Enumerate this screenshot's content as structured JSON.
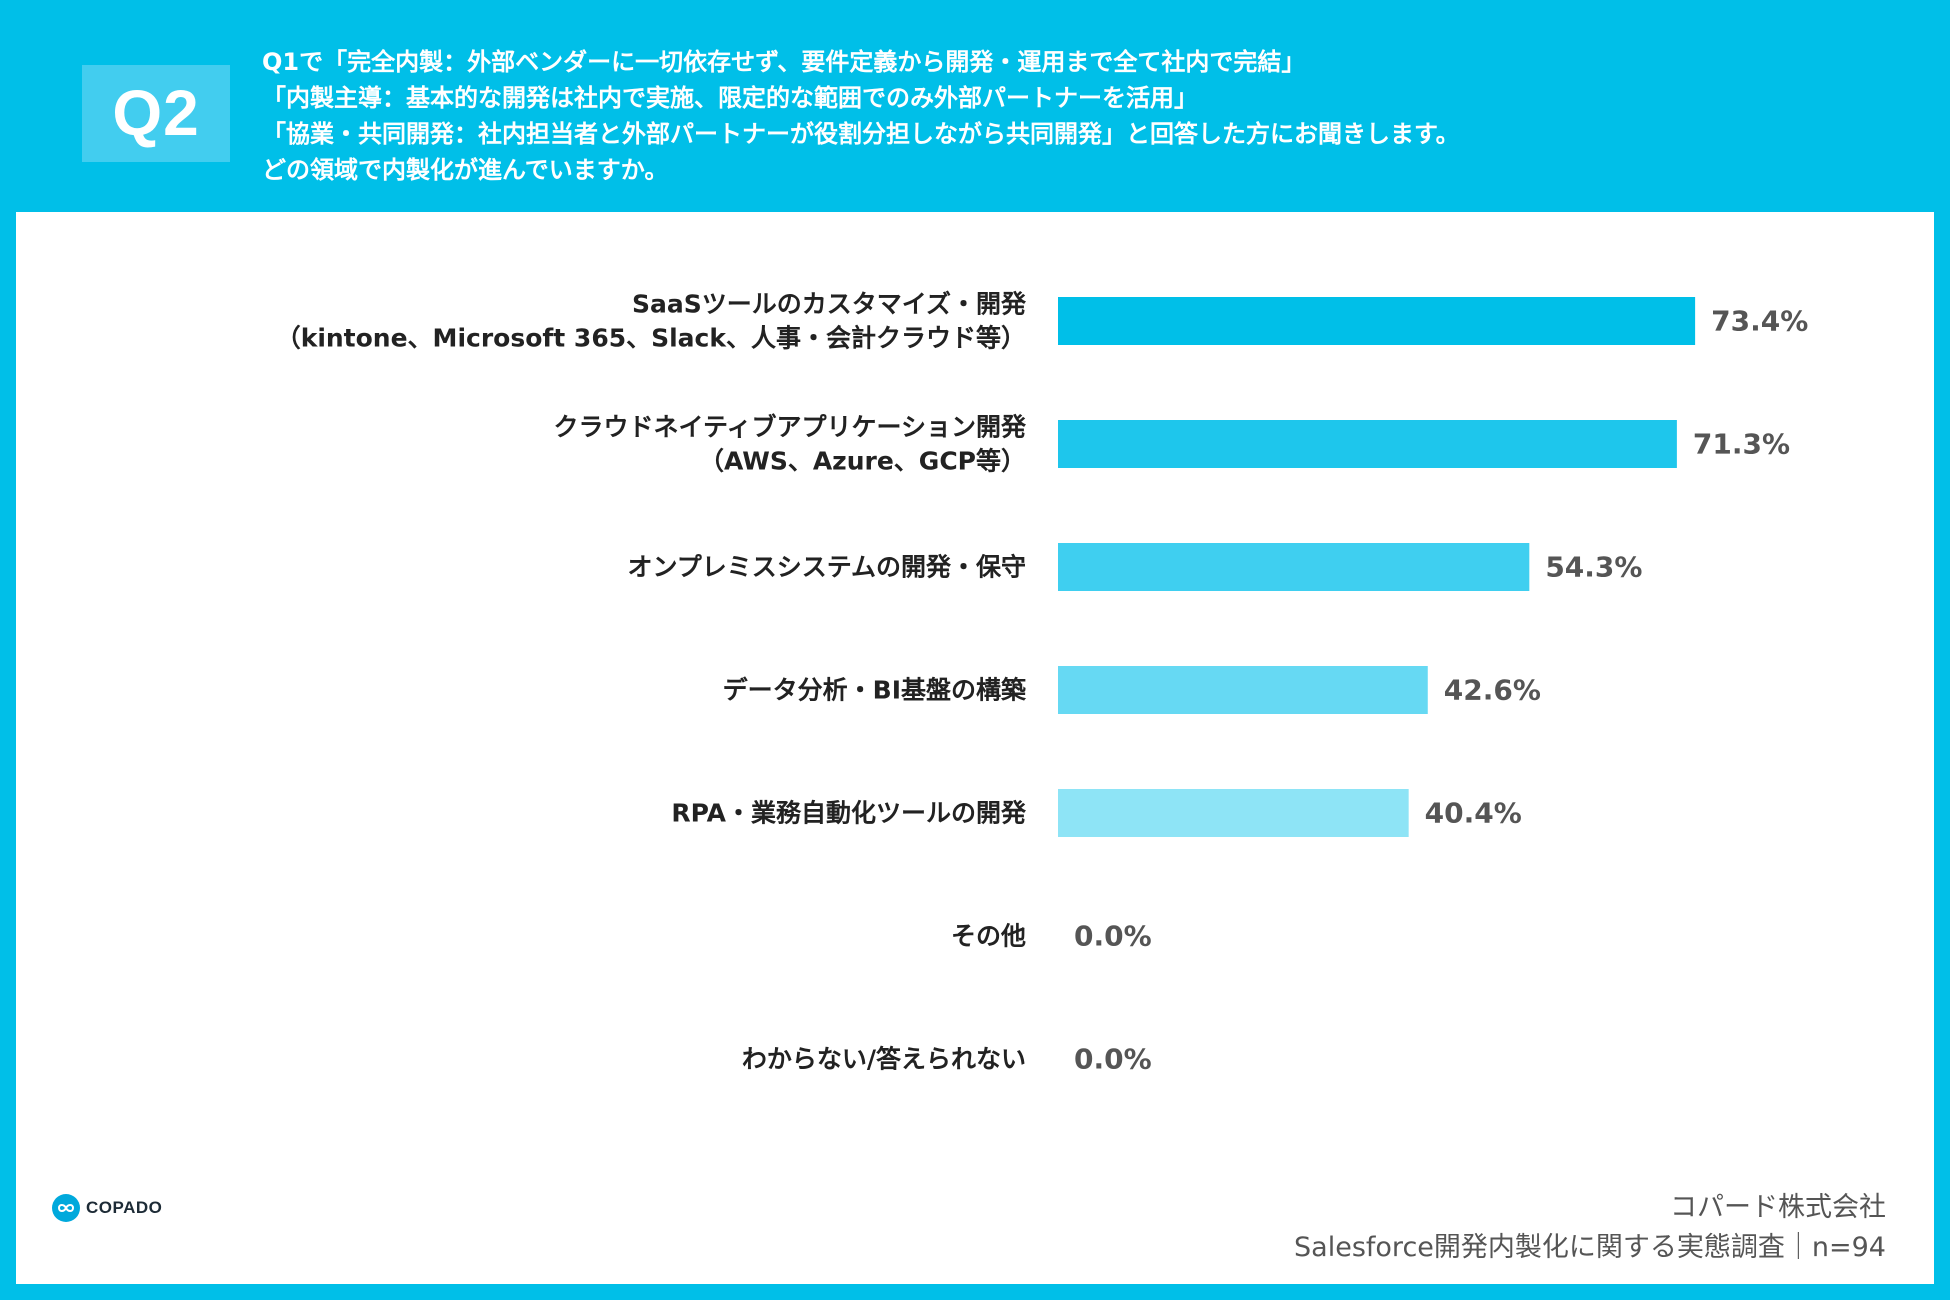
{
  "header": {
    "badge": "Q2",
    "question_lines": [
      "Q1で「完全内製：外部ベンダーに一切依存せず、要件定義から開発・運用まで全て社内で完結」",
      "「内製主導：基本的な開発は社内で実施、限定的な範囲でのみ外部パートナーを活用」",
      "「協業・共同開発：社内担当者と外部パートナーが役割分担しながら共同開発」と回答した方にお聞きします。",
      "どの領域で内製化が進んでいますか。"
    ]
  },
  "chart_data": {
    "type": "bar",
    "orientation": "horizontal",
    "categories": [
      [
        "SaaSツールのカスタマイズ・開発",
        "（kintone、Microsoft 365、Slack、人事・会計クラウド等）"
      ],
      [
        "クラウドネイティブアプリケーション開発",
        "（AWS、Azure、GCP等）"
      ],
      [
        "オンプレミスシステムの開発・保守"
      ],
      [
        "データ分析・BI基盤の構築"
      ],
      [
        "RPA・業務自動化ツールの開発"
      ],
      [
        "その他"
      ],
      [
        "わからない/答えられない"
      ]
    ],
    "values": [
      73.4,
      71.3,
      54.3,
      42.6,
      40.4,
      0.0,
      0.0
    ],
    "value_labels": [
      "73.4%",
      "71.3%",
      "54.3%",
      "42.6%",
      "40.4%",
      "0.0%",
      "0.0%"
    ],
    "bar_colors": [
      "#00bfe8",
      "#1ec6ec",
      "#3fcff0",
      "#66d9f3",
      "#8ee4f6",
      "#b0ecf8",
      "#b0ecf8"
    ],
    "xlim": [
      0,
      100
    ],
    "grid": false,
    "legend": "none"
  },
  "brand": {
    "logo_text": "COPADO",
    "logo_color": "#00a9dc"
  },
  "footer": {
    "company": "コパード株式会社",
    "survey": "Salesforce開発内製化に関する実態調査｜n=94"
  },
  "colors": {
    "header_bg": "#00bfe8",
    "badge_bg": "#42cdef",
    "label_text": "#222222",
    "value_text": "#555555"
  }
}
